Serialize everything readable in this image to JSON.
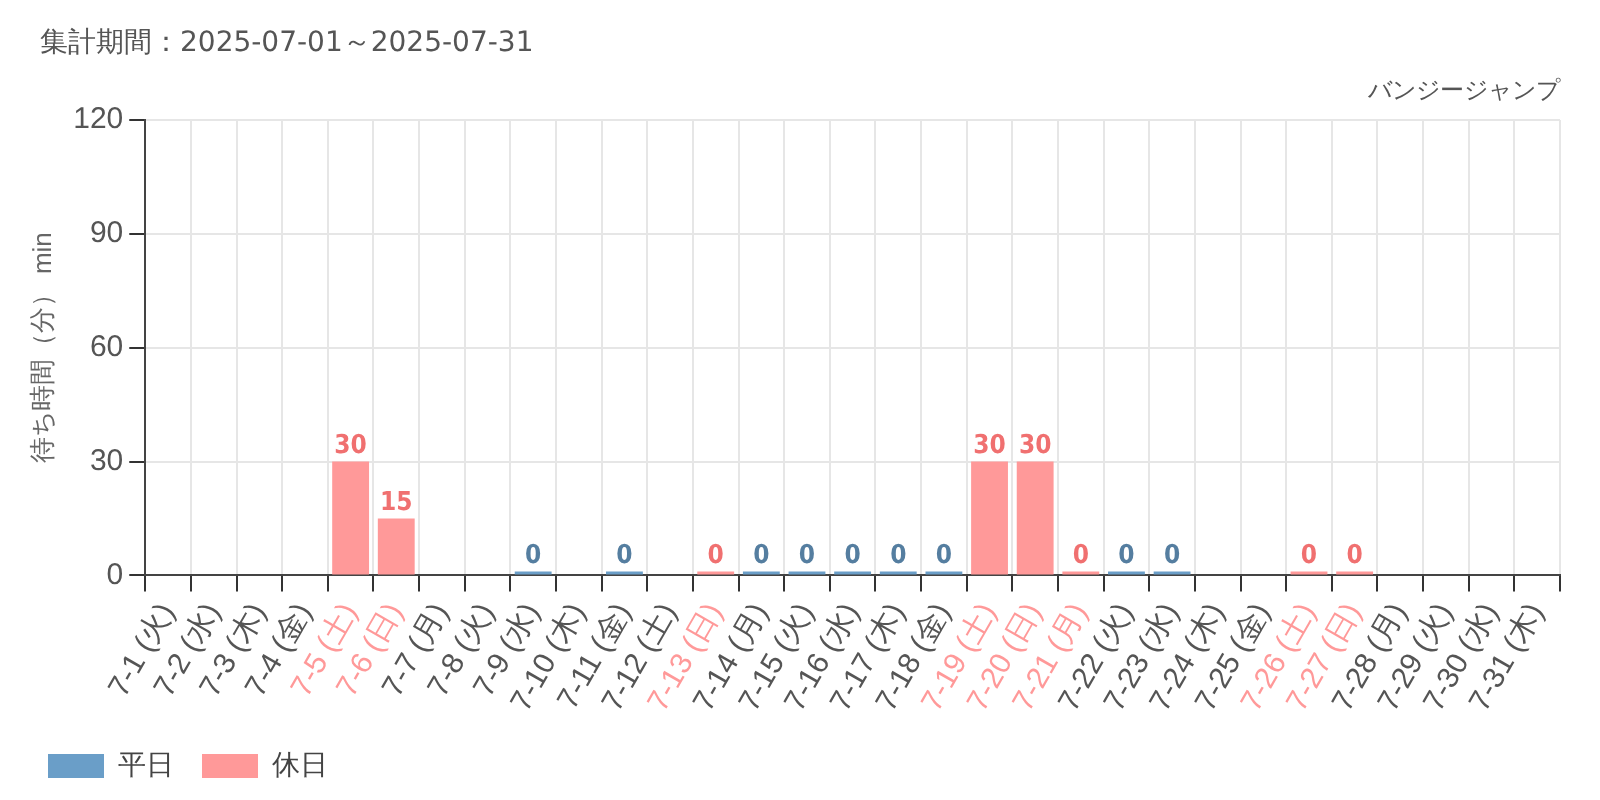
{
  "chart_data": {
    "type": "bar",
    "title": "集計期間：2025-07-01～2025-07-31",
    "subtitle": "バンジージャンプ",
    "ylabel": "待ち時間（分） min",
    "categories": [
      "7-1 (火)",
      "7-2 (水)",
      "7-3 (木)",
      "7-4 (金)",
      "7-5 (土)",
      "7-6 (日)",
      "7-7 (月)",
      "7-8 (火)",
      "7-9 (水)",
      "7-10 (木)",
      "7-11 (金)",
      "7-12 (土)",
      "7-13 (日)",
      "7-14 (月)",
      "7-15 (火)",
      "7-16 (水)",
      "7-17 (木)",
      "7-18 (金)",
      "7-19 (土)",
      "7-20 (日)",
      "7-21 (月)",
      "7-22 (火)",
      "7-23 (水)",
      "7-24 (木)",
      "7-25 (金)",
      "7-26 (土)",
      "7-27 (日)",
      "7-28 (月)",
      "7-29 (火)",
      "7-30 (水)",
      "7-31 (木)"
    ],
    "series": [
      {
        "name": "平日",
        "color": "#6a9ec8",
        "values": [
          null,
          null,
          null,
          null,
          null,
          null,
          null,
          null,
          0,
          null,
          0,
          null,
          null,
          0,
          0,
          0,
          0,
          0,
          null,
          null,
          null,
          0,
          0,
          null,
          null,
          null,
          null,
          null,
          null,
          null,
          null
        ]
      },
      {
        "name": "休日",
        "color": "#ff9999",
        "values": [
          null,
          null,
          null,
          null,
          30,
          15,
          null,
          null,
          null,
          null,
          null,
          null,
          0,
          null,
          null,
          null,
          null,
          null,
          30,
          30,
          0,
          null,
          null,
          null,
          null,
          0,
          0,
          null,
          null,
          null,
          null
        ]
      }
    ],
    "ylim": [
      0,
      120
    ],
    "yticks": [
      0,
      30,
      60,
      90,
      120
    ],
    "grid": true,
    "legend": "bottom left",
    "data_labels": true
  }
}
